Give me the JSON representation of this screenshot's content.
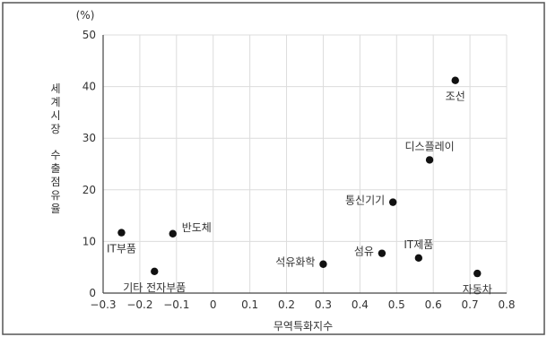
{
  "chart_data": {
    "type": "scatter",
    "title": "",
    "xlabel": "무역특화지수",
    "ylabel": "세계시장 수출점유율",
    "y_unit": "(%)",
    "xlim": [
      -0.3,
      0.8
    ],
    "ylim": [
      0,
      50
    ],
    "x_ticks": [
      -0.3,
      -0.2,
      -0.1,
      0,
      0.1,
      0.2,
      0.3,
      0.4,
      0.5,
      0.6,
      0.7,
      0.8
    ],
    "x_tick_labels": [
      "−0.3",
      "−0.2",
      "−0.1",
      "0",
      "0.1",
      "0.2",
      "0.3",
      "0.4",
      "0.5",
      "0.6",
      "0.7",
      "0.8"
    ],
    "y_ticks": [
      0,
      10,
      20,
      30,
      40,
      50
    ],
    "y_tick_labels": [
      "0",
      "10",
      "20",
      "30",
      "40",
      "50"
    ],
    "grid": true,
    "legend": "none",
    "point_color": "#111111",
    "grid_color": "#dcdcdc",
    "points": [
      {
        "label": "IT부품",
        "x": -0.25,
        "y": 11.7,
        "label_pos": "below"
      },
      {
        "label": "기타 전자부품",
        "x": -0.16,
        "y": 4.2,
        "label_pos": "below"
      },
      {
        "label": "반도체",
        "x": -0.11,
        "y": 11.5,
        "label_pos": "right"
      },
      {
        "label": "석유화학",
        "x": 0.3,
        "y": 5.6,
        "label_pos": "left"
      },
      {
        "label": "섬유",
        "x": 0.46,
        "y": 7.7,
        "label_pos": "left"
      },
      {
        "label": "IT제품",
        "x": 0.56,
        "y": 6.8,
        "label_pos": "above"
      },
      {
        "label": "자동차",
        "x": 0.72,
        "y": 3.8,
        "label_pos": "below"
      },
      {
        "label": "통신기기",
        "x": 0.49,
        "y": 17.6,
        "label_pos": "left"
      },
      {
        "label": "디스플레이",
        "x": 0.59,
        "y": 25.8,
        "label_pos": "above"
      },
      {
        "label": "조선",
        "x": 0.66,
        "y": 41.2,
        "label_pos": "below"
      }
    ]
  }
}
